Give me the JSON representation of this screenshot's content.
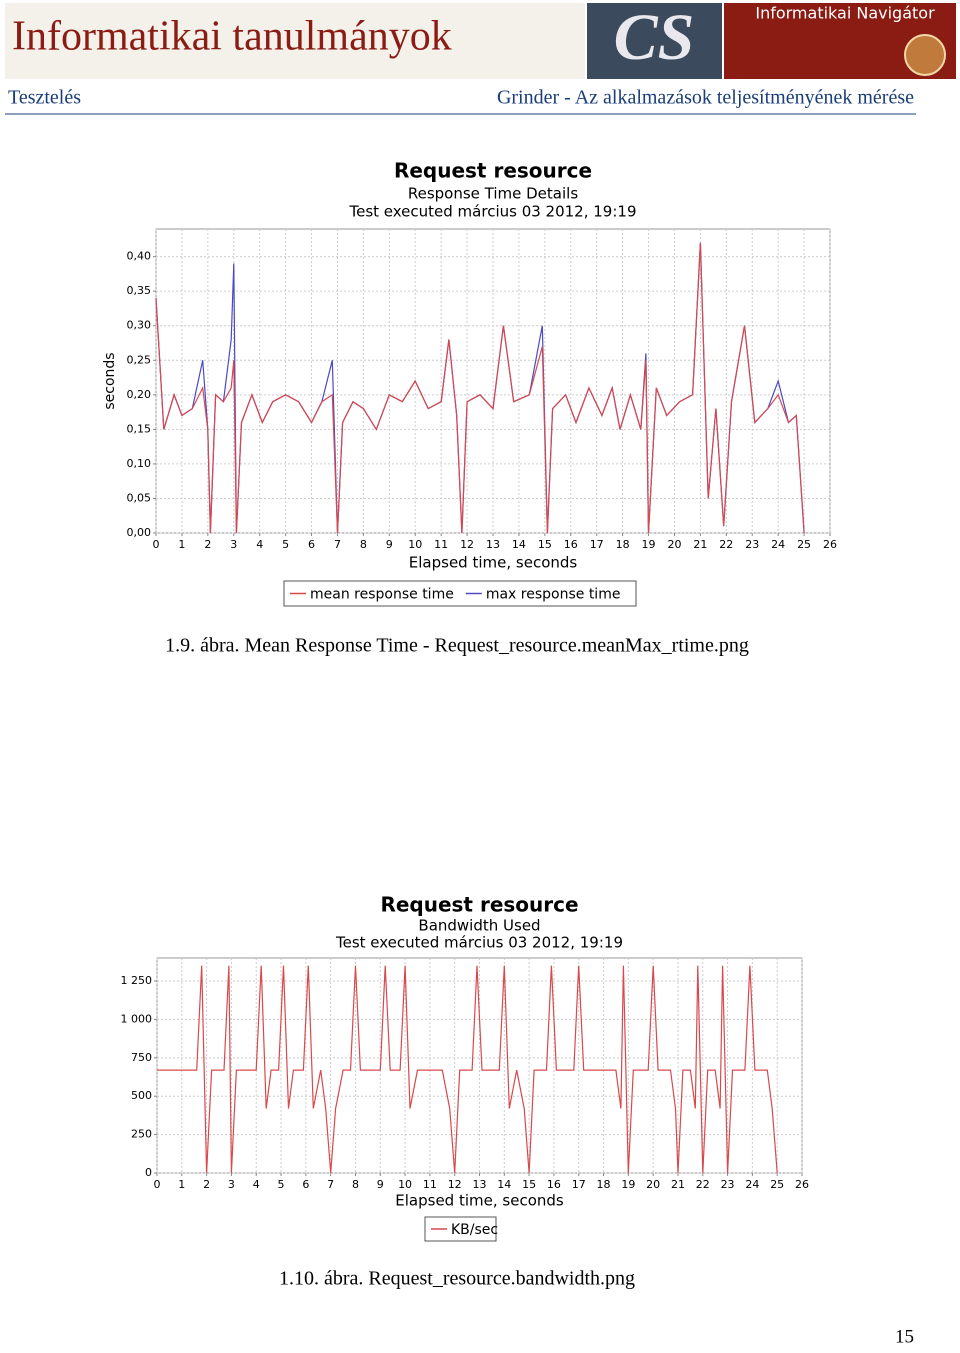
{
  "header": {
    "journal": "Informatikai tanulmányok",
    "logo": "CS",
    "badge": "Informatikai Navigátor",
    "section": "Tesztelés",
    "article": "Grinder - Az alkalmazások teljesítményének mérése"
  },
  "chart_data": [
    {
      "type": "line",
      "title": "Request resource",
      "subtitle": "Response Time Details",
      "test_info": "Test executed március 03 2012, 19:19",
      "x_label": "Elapsed time, seconds",
      "y_label": "seconds",
      "grid": true,
      "xlim": [
        0,
        26
      ],
      "xticks": [
        0,
        1,
        2,
        3,
        4,
        5,
        6,
        7,
        8,
        9,
        10,
        11,
        12,
        13,
        14,
        15,
        16,
        17,
        18,
        19,
        20,
        21,
        22,
        23,
        24,
        25,
        26
      ],
      "ylim": [
        0,
        0.44
      ],
      "yticks": [
        {
          "value": 0,
          "label": "0,00"
        },
        {
          "value": 0.05,
          "label": "0,05"
        },
        {
          "value": 0.1,
          "label": "0,10"
        },
        {
          "value": 0.15,
          "label": "0,15"
        },
        {
          "value": 0.2,
          "label": "0,20"
        },
        {
          "value": 0.25,
          "label": "0,25"
        },
        {
          "value": 0.3,
          "label": "0,30"
        },
        {
          "value": 0.35,
          "label": "0,35"
        },
        {
          "value": 0.4,
          "label": "0,40"
        }
      ],
      "x": [
        0,
        0.3,
        0.7,
        1.0,
        1.4,
        1.8,
        2.0,
        2.1,
        2.3,
        2.6,
        2.9,
        3.0,
        3.1,
        3.3,
        3.7,
        4.1,
        4.5,
        5.0,
        5.5,
        6.0,
        6.4,
        6.8,
        7.0,
        7.2,
        7.6,
        8.0,
        8.5,
        9.0,
        9.5,
        10.0,
        10.5,
        11.0,
        11.3,
        11.6,
        11.8,
        12.0,
        12.5,
        13.0,
        13.4,
        13.8,
        14.4,
        14.9,
        15.1,
        15.3,
        15.8,
        16.2,
        16.7,
        17.2,
        17.6,
        17.9,
        18.3,
        18.7,
        18.9,
        19.0,
        19.3,
        19.7,
        20.2,
        20.7,
        21.0,
        21.3,
        21.6,
        21.9,
        22.2,
        22.7,
        23.1,
        23.6,
        24.0,
        24.4,
        24.7,
        25.0
      ],
      "series": [
        {
          "name": "max response time",
          "color": "#4a4ac8",
          "values": [
            0.34,
            0.15,
            0.2,
            0.17,
            0.18,
            0.25,
            0.15,
            0,
            0.2,
            0.19,
            0.28,
            0.39,
            0,
            0.16,
            0.2,
            0.16,
            0.19,
            0.2,
            0.19,
            0.16,
            0.19,
            0.25,
            0,
            0.16,
            0.19,
            0.18,
            0.15,
            0.2,
            0.19,
            0.22,
            0.18,
            0.19,
            0.28,
            0.17,
            0,
            0.19,
            0.2,
            0.18,
            0.3,
            0.19,
            0.2,
            0.3,
            0,
            0.18,
            0.2,
            0.16,
            0.21,
            0.17,
            0.21,
            0.15,
            0.2,
            0.15,
            0.26,
            0,
            0.21,
            0.17,
            0.19,
            0.2,
            0.42,
            0.05,
            0.18,
            0.01,
            0.19,
            0.3,
            0.16,
            0.18,
            0.22,
            0.16,
            0.17,
            0
          ]
        },
        {
          "name": "mean response time",
          "color": "#d9484c",
          "values": [
            0.34,
            0.15,
            0.2,
            0.17,
            0.18,
            0.21,
            0.15,
            0,
            0.2,
            0.19,
            0.21,
            0.25,
            0,
            0.16,
            0.2,
            0.16,
            0.19,
            0.2,
            0.19,
            0.16,
            0.19,
            0.2,
            0,
            0.16,
            0.19,
            0.18,
            0.15,
            0.2,
            0.19,
            0.22,
            0.18,
            0.19,
            0.28,
            0.17,
            0,
            0.19,
            0.2,
            0.18,
            0.3,
            0.19,
            0.2,
            0.27,
            0,
            0.18,
            0.2,
            0.16,
            0.21,
            0.17,
            0.21,
            0.15,
            0.2,
            0.15,
            0.25,
            0,
            0.21,
            0.17,
            0.19,
            0.2,
            0.42,
            0.05,
            0.18,
            0.01,
            0.19,
            0.3,
            0.16,
            0.18,
            0.2,
            0.16,
            0.17,
            0
          ]
        }
      ],
      "legend_order": [
        1,
        0
      ],
      "caption": "1.9. ábra. Mean Response Time - Request_resource.meanMax_rtime.png"
    },
    {
      "type": "line",
      "title": "Request resource",
      "subtitle": "Bandwidth Used",
      "test_info": "Test executed március 03 2012, 19:19",
      "x_label": "Elapsed time, seconds",
      "grid": true,
      "xlim": [
        0,
        26
      ],
      "xticks": [
        0,
        1,
        2,
        3,
        4,
        5,
        6,
        7,
        8,
        9,
        10,
        11,
        12,
        13,
        14,
        15,
        16,
        17,
        18,
        19,
        20,
        21,
        22,
        23,
        24,
        25,
        26
      ],
      "ylim": [
        0,
        1400
      ],
      "yticks": [
        0,
        250,
        500,
        750,
        {
          "value": 1000,
          "label": "1 000"
        },
        {
          "value": 1250,
          "label": "1 250"
        }
      ],
      "x": [
        0,
        1.6,
        1.8,
        2.0,
        2.2,
        2.7,
        2.9,
        3.0,
        3.2,
        4.0,
        4.2,
        4.4,
        4.6,
        4.9,
        5.1,
        5.3,
        5.5,
        5.9,
        6.1,
        6.3,
        6.6,
        6.8,
        7.0,
        7.2,
        7.5,
        7.8,
        8.0,
        8.2,
        9.0,
        9.2,
        9.4,
        9.8,
        10.0,
        10.2,
        10.5,
        11.5,
        11.8,
        12.0,
        12.2,
        12.7,
        12.9,
        13.1,
        13.8,
        14.0,
        14.2,
        14.5,
        14.8,
        15.0,
        15.2,
        15.7,
        15.9,
        16.1,
        16.8,
        17.0,
        17.2,
        18.5,
        18.7,
        18.8,
        19.0,
        19.2,
        19.8,
        20.0,
        20.2,
        20.7,
        20.9,
        21.0,
        21.2,
        21.5,
        21.7,
        21.8,
        22.0,
        22.2,
        22.5,
        22.7,
        22.8,
        23.0,
        23.2,
        23.7,
        23.9,
        24.1,
        24.6,
        24.8,
        25.0
      ],
      "series": [
        {
          "name": "KB/sec",
          "color": "#d9484c",
          "values": [
            670,
            670,
            1350,
            0,
            670,
            670,
            1350,
            0,
            670,
            670,
            1350,
            420,
            670,
            670,
            1350,
            420,
            670,
            670,
            1350,
            420,
            670,
            420,
            0,
            420,
            670,
            670,
            1350,
            670,
            670,
            1350,
            670,
            670,
            1350,
            420,
            670,
            670,
            420,
            0,
            670,
            670,
            1350,
            670,
            670,
            1350,
            420,
            670,
            420,
            0,
            670,
            670,
            1350,
            670,
            670,
            1350,
            670,
            670,
            420,
            1350,
            0,
            670,
            670,
            1350,
            670,
            670,
            420,
            0,
            670,
            670,
            420,
            1350,
            0,
            670,
            670,
            420,
            1350,
            0,
            670,
            670,
            1350,
            670,
            670,
            420,
            0
          ]
        }
      ],
      "legend_order": [
        0
      ],
      "caption": "1.10. ábra. Request_resource.bandwidth.png"
    }
  ],
  "page_number": "15"
}
